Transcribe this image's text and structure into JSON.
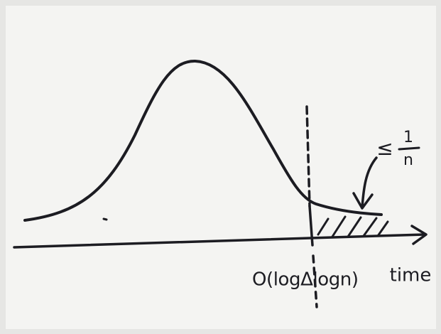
{
  "diagram": {
    "x_label": "O(logΔlogn)",
    "axis_label": "time",
    "annotation": {
      "symbol": "≤",
      "numerator": "1",
      "denominator": "n"
    }
  }
}
